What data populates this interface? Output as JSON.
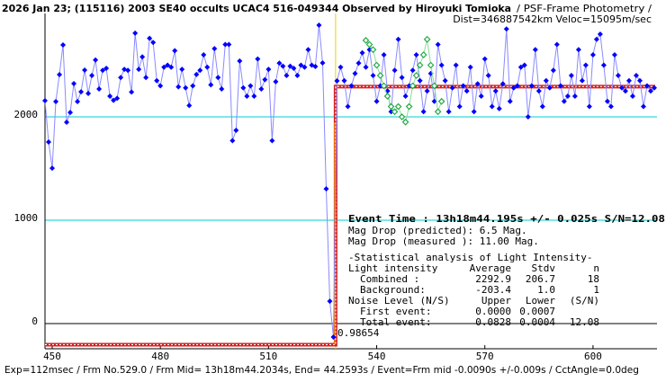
{
  "chart_data": {
    "type": "line",
    "title": "2026 Jan 23; (115116) 2003 SE40 occults UCAC4 516-049344 Observed by Hiroyuki Tomioka",
    "subtitle": "/ PSF-Frame Photometry /",
    "subtitle2": "Dist=346887542km Veloc=15095m/sec",
    "footer": "Exp=112msec / Frm No.529.0 / Frm Mid= 13h18m44.2034s, End= 44.2593s / Event=Frm mid -0.0090s +/-0.009s / CctAngle=0.0deg",
    "xlim": [
      448,
      617.75
    ],
    "ylim": [
      -243,
      3000
    ],
    "xticks": [
      450,
      480,
      510,
      540,
      570,
      600
    ],
    "yticks": [
      0,
      1000,
      2000
    ],
    "grid": true,
    "event_x": 528.6,
    "series": [
      {
        "name": "target",
        "color": "#0000ff",
        "line_color": "#8a8aff",
        "x": [
          448,
          449,
          450,
          451,
          452,
          453,
          454,
          455,
          456,
          457,
          458,
          459,
          460,
          461,
          462,
          463,
          464,
          465,
          466,
          467,
          468,
          469,
          470,
          471,
          472,
          473,
          474,
          475,
          476,
          477,
          478,
          479,
          480,
          481,
          482,
          483,
          484,
          485,
          486,
          487,
          488,
          489,
          490,
          491,
          492,
          493,
          494,
          495,
          496,
          497,
          498,
          499,
          500,
          501,
          502,
          503,
          504,
          505,
          506,
          507,
          508,
          509,
          510,
          511,
          512,
          513,
          514,
          515,
          516,
          517,
          518,
          519,
          520,
          521,
          522,
          523,
          524,
          525,
          526,
          527,
          528,
          529,
          530,
          531,
          532,
          533,
          534,
          535,
          536,
          537,
          538,
          539,
          540,
          541,
          542,
          543,
          544,
          545,
          546,
          547,
          548,
          549,
          550,
          551,
          552,
          553,
          554,
          555,
          556,
          557,
          558,
          559,
          560,
          561,
          562,
          563,
          564,
          565,
          566,
          567,
          568,
          569,
          570,
          571,
          572,
          573,
          574,
          575,
          576,
          577,
          578,
          579,
          580,
          581,
          582,
          583,
          584,
          585,
          586,
          587,
          588,
          589,
          590,
          591,
          592,
          593,
          594,
          595,
          596,
          597,
          598,
          599,
          600,
          601,
          602,
          603,
          604,
          605,
          606,
          607,
          608,
          609,
          610,
          611,
          612,
          613,
          614,
          615,
          616,
          617
        ],
        "values": [
          2157,
          1757,
          1504,
          2148,
          2409,
          2696,
          1948,
          2043,
          2322,
          2148,
          2243,
          2452,
          2226,
          2400,
          2550,
          2270,
          2450,
          2470,
          2200,
          2160,
          2180,
          2380,
          2460,
          2450,
          2240,
          2810,
          2460,
          2580,
          2380,
          2760,
          2720,
          2350,
          2300,
          2480,
          2500,
          2480,
          2640,
          2290,
          2460,
          2280,
          2110,
          2300,
          2410,
          2450,
          2600,
          2480,
          2310,
          2660,
          2380,
          2270,
          2700,
          2700,
          1770,
          1870,
          2540,
          2280,
          2200,
          2300,
          2200,
          2560,
          2270,
          2360,
          2460,
          1770,
          2340,
          2520,
          2490,
          2400,
          2490,
          2470,
          2400,
          2500,
          2480,
          2650,
          2500,
          2487,
          2887,
          2522,
          1304,
          217,
          -130,
          2348,
          2480,
          2350,
          2100,
          2300,
          2420,
          2520,
          2620,
          2480,
          2650,
          2400,
          2150,
          2300,
          2600,
          2250,
          2050,
          2450,
          2750,
          2380,
          2200,
          2300,
          2450,
          2600,
          2350,
          2050,
          2250,
          2420,
          2150,
          2700,
          2500,
          2350,
          2050,
          2280,
          2500,
          2100,
          2300,
          2250,
          2480,
          2050,
          2320,
          2200,
          2560,
          2400,
          2100,
          2250,
          2080,
          2320,
          2850,
          2150,
          2280,
          2300,
          2480,
          2500,
          2000,
          2300,
          2650,
          2250,
          2100,
          2350,
          2280,
          2450,
          2700,
          2300,
          2150,
          2200,
          2400,
          2200,
          2650,
          2350,
          2500,
          2100,
          2600,
          2750,
          2800,
          2500,
          2150,
          2100,
          2600,
          2400,
          2280,
          2250,
          2350,
          2200,
          2400,
          2350,
          2100,
          2300,
          2250,
          2280
        ]
      },
      {
        "name": "comparison",
        "color": "#22aa44",
        "line_color": "#88dd99",
        "x": [
          537,
          538,
          539,
          540,
          541,
          542,
          543,
          544,
          545,
          546,
          547,
          548,
          549,
          550,
          551,
          552,
          553,
          554,
          555,
          556,
          557,
          558
        ],
        "values": [
          2740,
          2700,
          2650,
          2500,
          2400,
          2300,
          2200,
          2100,
          2050,
          2100,
          2000,
          1950,
          2100,
          2300,
          2400,
          2500,
          2600,
          2750,
          2500,
          2300,
          2050,
          2150
        ]
      }
    ],
    "event_time": "Event Time : 13h18m44.195s  +/- 0.025s  S/N=12.08",
    "mag_lines": [
      "Mag Drop (predicted):  6.5   Mag.",
      "Mag Drop (measured ): 11.00  Mag."
    ],
    "stats": {
      "heading": "-Statistical analysis of Light Intensity-",
      "header": [
        "Light intensity",
        "Average",
        "Stdv",
        "n"
      ],
      "rows": [
        [
          "Combined  :",
          2292.9,
          206.7,
          18
        ],
        [
          "Background:",
          -203.4,
          "1.0",
          1
        ]
      ],
      "noise_header": [
        "Noise Level (N/S)",
        "Upper",
        "Lower",
        "(S/N)"
      ],
      "noise_rows": [
        [
          "First event:",
          "0.0000",
          "0.0007"
        ],
        [
          "Total event:",
          "0.0828",
          "0.0004",
          12.08
        ]
      ]
    },
    "ratio": "0.98654"
  }
}
